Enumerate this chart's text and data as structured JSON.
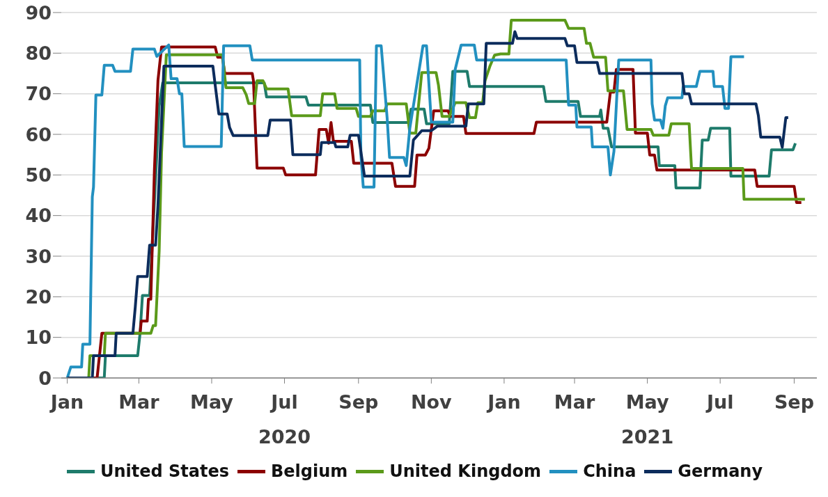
{
  "chart_data": {
    "type": "line",
    "xlim": [
      "2019-12-27",
      "2021-09-20"
    ],
    "xticks": [
      {
        "value": "2020-01-01",
        "label": "Jan"
      },
      {
        "value": "2020-03-01",
        "label": "Mar"
      },
      {
        "value": "2020-05-01",
        "label": "May"
      },
      {
        "value": "2020-07-01",
        "label": "Jul\n2020"
      },
      {
        "value": "2020-09-01",
        "label": "Sep"
      },
      {
        "value": "2020-11-01",
        "label": "Nov"
      },
      {
        "value": "2021-01-01",
        "label": "Jan"
      },
      {
        "value": "2021-03-01",
        "label": "Mar"
      },
      {
        "value": "2021-05-01",
        "label": "May\n2021"
      },
      {
        "value": "2021-07-01",
        "label": "Jul"
      },
      {
        "value": "2021-09-01",
        "label": "Sep"
      }
    ],
    "ylim": [
      0,
      90
    ],
    "yticks": [
      0,
      10,
      20,
      30,
      40,
      50,
      60,
      70,
      80,
      90
    ],
    "grid": "y",
    "legend": "bottom",
    "marker": "none",
    "line_style": "solid",
    "series": [
      {
        "name": "United States",
        "color": "#1e7b6b",
        "x": [
          "2020-01-01",
          "2020-02-01",
          "2020-02-02",
          "2020-02-29",
          "2020-03-02",
          "2020-03-04",
          "2020-03-10",
          "2020-03-12",
          "2020-03-16",
          "2020-03-18",
          "2020-03-21",
          "2020-06-14",
          "2020-06-16",
          "2020-07-19",
          "2020-07-21",
          "2020-09-11",
          "2020-09-13",
          "2020-10-13",
          "2020-10-15",
          "2020-10-26",
          "2020-10-28",
          "2020-11-16",
          "2020-11-19",
          "2020-12-01",
          "2020-12-03",
          "2021-02-03",
          "2021-02-05",
          "2021-03-04",
          "2021-03-06",
          "2021-03-22",
          "2021-03-23",
          "2021-03-25",
          "2021-03-29",
          "2021-04-01",
          "2021-05-10",
          "2021-05-11",
          "2021-05-24",
          "2021-05-25",
          "2021-06-14",
          "2021-06-16",
          "2021-06-21",
          "2021-06-23",
          "2021-07-09",
          "2021-07-10",
          "2021-08-11",
          "2021-08-13",
          "2021-08-31",
          "2021-09-02"
        ],
        "values": [
          0,
          0,
          5.5,
          5.5,
          11,
          20.3,
          20.3,
          31.8,
          54.9,
          67,
          72.7,
          72.7,
          69.2,
          69.2,
          67.2,
          67.2,
          62.9,
          62.9,
          66.2,
          66.2,
          62.6,
          62.6,
          75.5,
          75.5,
          71.8,
          71.8,
          68.1,
          68.1,
          64.4,
          64.4,
          66,
          61.5,
          61.5,
          56.9,
          56.9,
          52.3,
          52.3,
          46.8,
          46.8,
          58.6,
          58.6,
          61.5,
          61.5,
          49.7,
          49.7,
          56.2,
          56.2,
          57.8
        ]
      },
      {
        "name": "Belgium",
        "color": "#8b0000",
        "x": [
          "2020-01-01",
          "2020-01-26",
          "2020-01-30",
          "2020-03-02",
          "2020-03-03",
          "2020-03-08",
          "2020-03-09",
          "2020-03-11",
          "2020-03-14",
          "2020-03-17",
          "2020-03-20",
          "2020-05-04",
          "2020-05-06",
          "2020-05-10",
          "2020-05-12",
          "2020-06-04",
          "2020-06-05",
          "2020-06-08",
          "2020-06-30",
          "2020-07-02",
          "2020-07-27",
          "2020-07-30",
          "2020-08-05",
          "2020-08-07",
          "2020-08-09",
          "2020-08-11",
          "2020-08-26",
          "2020-08-28",
          "2020-09-29",
          "2020-10-02",
          "2020-10-18",
          "2020-10-20",
          "2020-10-27",
          "2020-10-30",
          "2020-11-03",
          "2020-11-15",
          "2020-11-17",
          "2020-11-28",
          "2020-11-30",
          "2021-01-26",
          "2021-01-28",
          "2021-03-28",
          "2021-03-31",
          "2021-04-03",
          "2021-04-05",
          "2021-04-19",
          "2021-04-21",
          "2021-05-01",
          "2021-05-03",
          "2021-05-07",
          "2021-05-09",
          "2021-07-30",
          "2021-08-01",
          "2021-09-01",
          "2021-09-03",
          "2021-09-07"
        ],
        "values": [
          0,
          0,
          11,
          11,
          14,
          14,
          19.4,
          19.4,
          51,
          73.3,
          81.5,
          81.5,
          79,
          79,
          75,
          75,
          73.2,
          51.7,
          51.7,
          50,
          50,
          61.2,
          61.2,
          57.8,
          62.9,
          58.3,
          58.3,
          52.9,
          52.9,
          47.2,
          47.2,
          54.9,
          54.9,
          56.6,
          65.8,
          65.8,
          64.4,
          64.4,
          60.2,
          60.2,
          63,
          63,
          70.4,
          70.4,
          76,
          76,
          60.3,
          60.3,
          54.9,
          54.9,
          51.2,
          51.2,
          47.2,
          47.2,
          43.2,
          43.2
        ]
      },
      {
        "name": "United Kingdom",
        "color": "#5b9a1a",
        "x": [
          "2020-01-01",
          "2020-01-19",
          "2020-01-20",
          "2020-02-01",
          "2020-02-02",
          "2020-03-11",
          "2020-03-13",
          "2020-03-15",
          "2020-03-18",
          "2020-03-20",
          "2020-03-24",
          "2020-05-10",
          "2020-05-13",
          "2020-05-27",
          "2020-05-30",
          "2020-06-01",
          "2020-06-06",
          "2020-06-08",
          "2020-06-13",
          "2020-06-16",
          "2020-07-04",
          "2020-07-07",
          "2020-07-31",
          "2020-08-02",
          "2020-08-12",
          "2020-08-14",
          "2020-08-30",
          "2020-09-01",
          "2020-09-11",
          "2020-09-13",
          "2020-09-23",
          "2020-09-25",
          "2020-10-11",
          "2020-10-14",
          "2020-10-19",
          "2020-10-24",
          "2020-11-05",
          "2020-11-07",
          "2020-11-10",
          "2020-11-16",
          "2020-11-21",
          "2020-11-30",
          "2020-12-03",
          "2020-12-08",
          "2020-12-10",
          "2020-12-14",
          "2020-12-16",
          "2020-12-20",
          "2020-12-24",
          "2020-12-29",
          "2021-01-05",
          "2021-01-07",
          "2021-02-21",
          "2021-02-24",
          "2021-03-09",
          "2021-03-11",
          "2021-03-14",
          "2021-03-17",
          "2021-03-27",
          "2021-03-29",
          "2021-04-11",
          "2021-04-14",
          "2021-05-04",
          "2021-05-06",
          "2021-05-19",
          "2021-05-21",
          "2021-06-05",
          "2021-06-07",
          "2021-07-20",
          "2021-07-21",
          "2021-09-10"
        ],
        "values": [
          0,
          0,
          5.5,
          5.5,
          11,
          11,
          12.9,
          12.9,
          31.2,
          55.5,
          79.6,
          79.6,
          71.5,
          71.5,
          69.7,
          67.6,
          67.6,
          73.2,
          73.2,
          71.2,
          71.2,
          64.6,
          64.6,
          70,
          70,
          66.4,
          66.4,
          64.4,
          64.4,
          65.8,
          65.8,
          67.5,
          67.5,
          60.3,
          60.3,
          75.2,
          75.2,
          72.1,
          64.4,
          64.4,
          67.8,
          67.8,
          64.1,
          64.1,
          67.8,
          67.8,
          73.2,
          76.7,
          79.5,
          79.8,
          79.8,
          88.1,
          88.1,
          86.1,
          86.1,
          82.4,
          82.4,
          79,
          79,
          70.7,
          70.7,
          61.2,
          61.2,
          59.8,
          59.8,
          62.6,
          62.6,
          51.6,
          51.6,
          44,
          44
        ]
      },
      {
        "name": "China",
        "color": "#2290c0",
        "x": [
          "2020-01-01",
          "2020-01-04",
          "2020-01-13",
          "2020-01-14",
          "2020-01-20",
          "2020-01-22",
          "2020-01-23",
          "2020-01-25",
          "2020-01-30",
          "2020-02-01",
          "2020-02-08",
          "2020-02-10",
          "2020-02-23",
          "2020-02-25",
          "2020-03-14",
          "2020-03-16",
          "2020-03-26",
          "2020-03-28",
          "2020-04-02",
          "2020-04-04",
          "2020-04-06",
          "2020-04-08",
          "2020-05-09",
          "2020-05-11",
          "2020-06-02",
          "2020-06-04",
          "2020-09-02",
          "2020-09-03",
          "2020-09-05",
          "2020-09-14",
          "2020-09-16",
          "2020-09-20",
          "2020-09-25",
          "2020-09-27",
          "2020-10-09",
          "2020-10-11",
          "2020-10-14",
          "2020-10-25",
          "2020-10-28",
          "2020-11-01",
          "2020-11-19",
          "2020-11-21",
          "2020-11-26",
          "2020-12-07",
          "2020-12-09",
          "2021-02-22",
          "2021-02-24",
          "2021-03-02",
          "2021-03-03",
          "2021-03-15",
          "2021-03-16",
          "2021-03-29",
          "2021-03-31",
          "2021-04-03",
          "2021-04-07",
          "2021-05-04",
          "2021-05-05",
          "2021-05-07",
          "2021-05-12",
          "2021-05-14",
          "2021-05-16",
          "2021-05-18",
          "2021-05-30",
          "2021-05-31",
          "2021-06-11",
          "2021-06-14",
          "2021-06-25",
          "2021-06-26",
          "2021-07-03",
          "2021-07-05",
          "2021-07-08",
          "2021-07-10",
          "2021-07-21"
        ],
        "values": [
          0,
          2.7,
          2.7,
          8.3,
          8.3,
          44.6,
          47,
          69.7,
          69.7,
          77,
          77,
          75.5,
          75.5,
          81,
          81,
          79.2,
          82,
          73.7,
          73.7,
          70,
          70,
          57,
          57,
          81.8,
          81.8,
          78.3,
          78.3,
          55,
          47,
          47,
          81.8,
          81.8,
          64,
          54.3,
          54.3,
          52.3,
          61.5,
          81.8,
          81.8,
          63,
          63,
          76,
          82,
          82,
          78.3,
          78.3,
          67.2,
          67.2,
          61.8,
          61.8,
          56.9,
          56.9,
          50,
          55.8,
          78.3,
          78.3,
          67.5,
          63.5,
          63.5,
          61.5,
          67,
          69,
          69,
          71.8,
          71.8,
          75.5,
          75.5,
          71.8,
          71.8,
          66.4,
          66.4,
          79.1,
          79.1
        ]
      },
      {
        "name": "Germany",
        "color": "#0c2c5c",
        "x": [
          "2020-01-01",
          "2020-01-22",
          "2020-01-23",
          "2020-02-10",
          "2020-02-11",
          "2020-02-25",
          "2020-02-27",
          "2020-02-29",
          "2020-03-08",
          "2020-03-10",
          "2020-03-15",
          "2020-03-17",
          "2020-03-22",
          "2020-05-02",
          "2020-05-04",
          "2020-05-07",
          "2020-05-14",
          "2020-05-16",
          "2020-05-19",
          "2020-06-17",
          "2020-06-19",
          "2020-07-06",
          "2020-07-08",
          "2020-07-31",
          "2020-08-01",
          "2020-08-12",
          "2020-08-13",
          "2020-08-23",
          "2020-08-25",
          "2020-09-01",
          "2020-09-06",
          "2020-10-14",
          "2020-10-17",
          "2020-10-24",
          "2020-11-01",
          "2020-11-06",
          "2020-11-30",
          "2020-12-02",
          "2020-12-15",
          "2020-12-17",
          "2021-01-08",
          "2021-01-10",
          "2021-01-12",
          "2021-02-21",
          "2021-02-23",
          "2021-03-01",
          "2021-03-03",
          "2021-03-20",
          "2021-03-22",
          "2021-05-30",
          "2021-06-01",
          "2021-06-05",
          "2021-06-07",
          "2021-07-31",
          "2021-08-02",
          "2021-08-04",
          "2021-08-20",
          "2021-08-22",
          "2021-08-25",
          "2021-08-27"
        ],
        "values": [
          0,
          0,
          5.5,
          5.5,
          11,
          11,
          17.5,
          25,
          25,
          32.7,
          32.7,
          42.5,
          76.8,
          76.8,
          72,
          65,
          65,
          61.7,
          59.7,
          59.7,
          63.5,
          63.5,
          55,
          55,
          58,
          58,
          56.9,
          56.9,
          59.8,
          59.8,
          49.7,
          49.7,
          58.6,
          60.9,
          60.9,
          62,
          62,
          67.5,
          67.5,
          82.4,
          82.4,
          85.3,
          83.6,
          83.6,
          81.8,
          81.8,
          77.7,
          77.7,
          75,
          75,
          70,
          70,
          67.5,
          67.5,
          64.6,
          59.3,
          59.3,
          56.8,
          64.1,
          64.1
        ]
      }
    ]
  }
}
